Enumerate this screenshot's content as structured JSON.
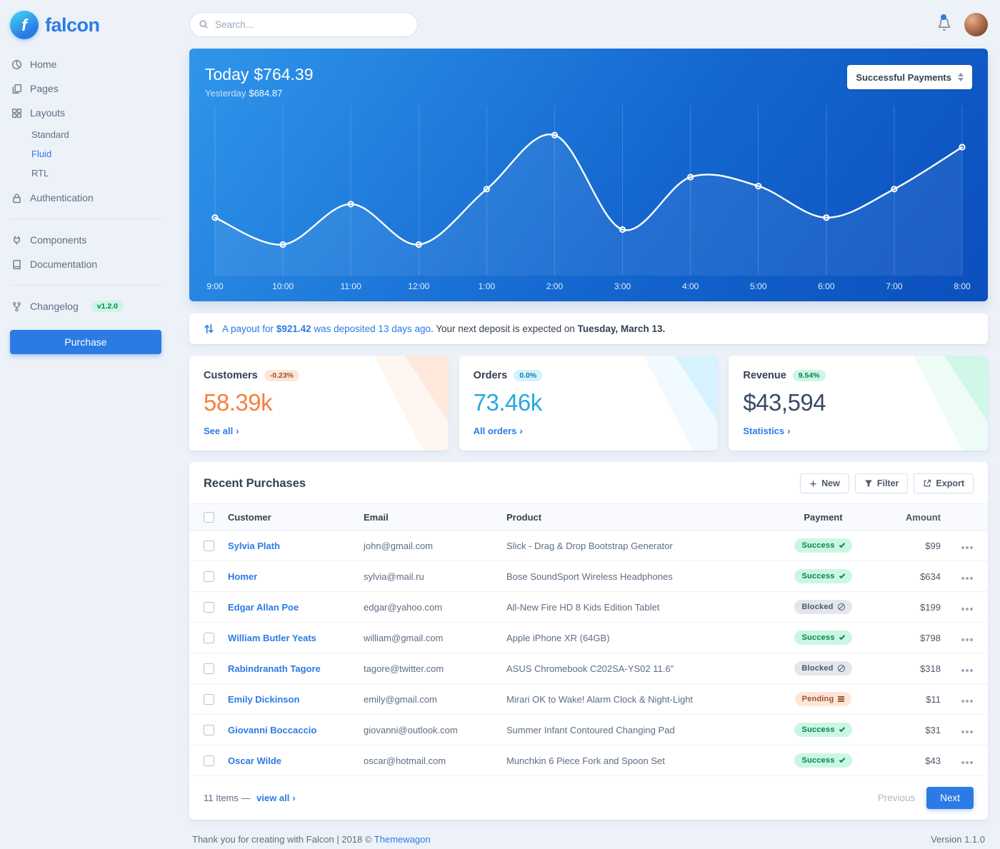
{
  "brand": {
    "name": "falcon",
    "logo_letter": "f"
  },
  "topbar": {
    "search_placeholder": "Search..."
  },
  "sidebar": {
    "items": [
      {
        "label": "Home"
      },
      {
        "label": "Pages"
      },
      {
        "label": "Layouts",
        "children": [
          {
            "label": "Standard"
          },
          {
            "label": "Fluid"
          },
          {
            "label": "RTL"
          }
        ]
      },
      {
        "label": "Authentication"
      },
      {
        "label": "Components"
      },
      {
        "label": "Documentation"
      },
      {
        "label": "Changelog",
        "badge": "v1.2.0"
      }
    ],
    "purchase_label": "Purchase"
  },
  "chart_card": {
    "today_label": "Today",
    "today_value": "$764.39",
    "yesterday_label": "Yesterday",
    "yesterday_value": "$684.87",
    "filter_selected": "Successful Payments"
  },
  "chart_data": {
    "type": "line",
    "title": "Successful Payments",
    "categories": [
      "9:00",
      "10:00",
      "11:00",
      "12:00",
      "1:00",
      "2:00",
      "3:00",
      "4:00",
      "5:00",
      "6:00",
      "7:00",
      "8:00"
    ],
    "values": [
      33,
      15,
      42,
      15,
      52,
      88,
      25,
      60,
      54,
      33,
      52,
      80
    ],
    "ylim": [
      0,
      100
    ],
    "line_color": "#ffffff",
    "background_gradient": [
      "#2f96ea",
      "#0b4fbd"
    ],
    "grid": "vertical-only",
    "legend": "none"
  },
  "payout_notice": {
    "link_prefix": "A payout for ",
    "amount": "$921.42",
    "link_suffix": " was deposited 13 days ago",
    "middle": ". Your next deposit is expected on ",
    "date": "Tuesday, March 13."
  },
  "stats": [
    {
      "title": "Customers",
      "badge": "-0.23%",
      "value": "58.39k",
      "link": "See all",
      "accent": "#f5803e"
    },
    {
      "title": "Orders",
      "badge": "0.0%",
      "value": "73.46k",
      "link": "All orders",
      "accent": "#27bcfd"
    },
    {
      "title": "Revenue",
      "badge": "9.54%",
      "value": "$43,594",
      "link": "Statistics",
      "accent": "#00d27a"
    }
  ],
  "purchases": {
    "title": "Recent Purchases",
    "buttons": {
      "new": "New",
      "filter": "Filter",
      "export": "Export"
    },
    "columns": [
      "Customer",
      "Email",
      "Product",
      "Payment",
      "Amount"
    ],
    "rows": [
      {
        "customer": "Sylvia Plath",
        "email": "john@gmail.com",
        "product": "Slick - Drag & Drop Bootstrap Generator",
        "payment": "Success",
        "status": "success",
        "amount": "$99"
      },
      {
        "customer": "Homer",
        "email": "sylvia@mail.ru",
        "product": "Bose SoundSport Wireless Headphones",
        "payment": "Success",
        "status": "success",
        "amount": "$634"
      },
      {
        "customer": "Edgar Allan Poe",
        "email": "edgar@yahoo.com",
        "product": "All-New Fire HD 8 Kids Edition Tablet",
        "payment": "Blocked",
        "status": "blocked",
        "amount": "$199"
      },
      {
        "customer": "William Butler Yeats",
        "email": "william@gmail.com",
        "product": "Apple iPhone XR (64GB)",
        "payment": "Success",
        "status": "success",
        "amount": "$798"
      },
      {
        "customer": "Rabindranath Tagore",
        "email": "tagore@twitter.com",
        "product": "ASUS Chromebook C202SA-YS02 11.6\"",
        "payment": "Blocked",
        "status": "blocked",
        "amount": "$318"
      },
      {
        "customer": "Emily Dickinson",
        "email": "emily@gmail.com",
        "product": "Mirari OK to Wake! Alarm Clock & Night-Light",
        "payment": "Pending",
        "status": "pending",
        "amount": "$11"
      },
      {
        "customer": "Giovanni Boccaccio",
        "email": "giovanni@outlook.com",
        "product": "Summer Infant Contoured Changing Pad",
        "payment": "Success",
        "status": "success",
        "amount": "$31"
      },
      {
        "customer": "Oscar Wilde",
        "email": "oscar@hotmail.com",
        "product": "Munchkin 6 Piece Fork and Spoon Set",
        "payment": "Success",
        "status": "success",
        "amount": "$43"
      }
    ],
    "footer": {
      "items_count": "11 Items —",
      "view_all": "view all",
      "previous": "Previous",
      "next": "Next"
    }
  },
  "page_footer": {
    "thanks": "Thank you for creating with Falcon | 2018 © ",
    "link": "Themewagon",
    "version": "Version 1.1.0"
  }
}
